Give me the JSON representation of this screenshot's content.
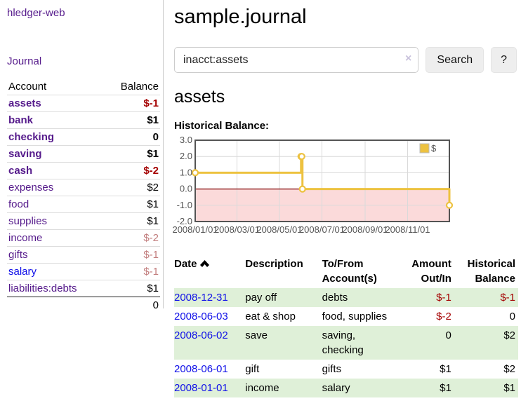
{
  "sidebar": {
    "app_title": "hledger-web",
    "journal_link": "Journal",
    "accounts_table": {
      "account_header": "Account",
      "balance_header": "Balance",
      "rows": [
        {
          "name": "assets",
          "balance": "$-1",
          "indent": 1,
          "bold": true,
          "link_color": "purple",
          "balance_color": "neg"
        },
        {
          "name": "bank",
          "balance": "$1",
          "indent": 2,
          "bold": true,
          "link_color": "purple",
          "balance_color": ""
        },
        {
          "name": "checking",
          "balance": "0",
          "indent": 3,
          "bold": true,
          "link_color": "purple",
          "balance_color": ""
        },
        {
          "name": "saving",
          "balance": "$1",
          "indent": 3,
          "bold": true,
          "link_color": "purple",
          "balance_color": ""
        },
        {
          "name": "cash",
          "balance": "$-2",
          "indent": 2,
          "bold": true,
          "link_color": "purple",
          "balance_color": "neg"
        },
        {
          "name": "expenses",
          "balance": "$2",
          "indent": 1,
          "bold": false,
          "link_color": "purple",
          "balance_color": ""
        },
        {
          "name": "food",
          "balance": "$1",
          "indent": 2,
          "bold": false,
          "link_color": "purple",
          "balance_color": ""
        },
        {
          "name": "supplies",
          "balance": "$1",
          "indent": 2,
          "bold": false,
          "link_color": "purple",
          "balance_color": ""
        },
        {
          "name": "income",
          "balance": "$-2",
          "indent": 1,
          "bold": false,
          "link_color": "purple",
          "balance_color": "soft"
        },
        {
          "name": "gifts",
          "balance": "$-1",
          "indent": 2,
          "bold": false,
          "link_color": "purple",
          "balance_color": "soft"
        },
        {
          "name": "salary",
          "balance": "$-1",
          "indent": 2,
          "bold": false,
          "link_color": "blue",
          "balance_color": "soft"
        },
        {
          "name": "liabilities:debts",
          "balance": "$1",
          "indent": 1,
          "bold": false,
          "link_color": "purple",
          "balance_color": ""
        }
      ],
      "total": "0"
    }
  },
  "main": {
    "title": "sample.journal",
    "search": {
      "value": "inacct:assets",
      "clear_icon": "×",
      "button_label": "Search",
      "help_label": "?"
    },
    "account_heading": "assets",
    "chart_title": "Historical Balance:"
  },
  "chart_data": {
    "type": "line",
    "style": "step-after",
    "title": "Historical Balance",
    "legend": {
      "label": "$",
      "position": "top-right"
    },
    "x_range": [
      "2008-01-01",
      "2008-12-31"
    ],
    "ylim": [
      -2.0,
      3.0
    ],
    "y_ticks": [
      3.0,
      2.0,
      1.0,
      0.0,
      -1.0,
      -2.0
    ],
    "x_ticks": [
      {
        "label": "2008/01/01",
        "date": "2008-01-01"
      },
      {
        "label": "2008/03/01",
        "date": "2008-03-01"
      },
      {
        "label": "2008/05/01",
        "date": "2008-05-01"
      },
      {
        "label": "2008/07/01",
        "date": "2008-07-01"
      },
      {
        "label": "2008/09/01",
        "date": "2008-09-01"
      },
      {
        "label": "2008/11/01",
        "date": "2008-11-01"
      }
    ],
    "series": [
      {
        "name": "$",
        "color": "#edc240",
        "points": [
          {
            "date": "2008-01-01",
            "value": 1
          },
          {
            "date": "2008-06-01",
            "value": 2
          },
          {
            "date": "2008-06-02",
            "value": 2
          },
          {
            "date": "2008-06-03",
            "value": 0
          },
          {
            "date": "2008-12-31",
            "value": -1
          }
        ]
      }
    ],
    "negative_region_fill": "#fbdada",
    "zero_line_color": "#800000",
    "grid_color": "#d9d9d9",
    "border_color": "#545454",
    "grid": true
  },
  "register_table": {
    "headers": {
      "date": "Date",
      "description": "Description",
      "accounts": "To/From Account(s)",
      "amount": "Amount Out/In",
      "balance": "Historical Balance"
    },
    "rows": [
      {
        "date": "2008-12-31",
        "description": "pay off",
        "accounts": "debts",
        "amount": "$-1",
        "balance": "$-1",
        "amount_neg": true,
        "balance_neg": true,
        "shade": true
      },
      {
        "date": "2008-06-03",
        "description": "eat & shop",
        "accounts": "food, supplies",
        "amount": "$-2",
        "balance": "0",
        "amount_neg": true,
        "balance_neg": false,
        "shade": false
      },
      {
        "date": "2008-06-02",
        "description": "save",
        "accounts": "saving, checking",
        "amount": "0",
        "balance": "$2",
        "amount_neg": false,
        "balance_neg": false,
        "shade": true
      },
      {
        "date": "2008-06-01",
        "description": "gift",
        "accounts": "gifts",
        "amount": "$1",
        "balance": "$2",
        "amount_neg": false,
        "balance_neg": false,
        "shade": false
      },
      {
        "date": "2008-01-01",
        "description": "income",
        "accounts": "salary",
        "amount": "$1",
        "balance": "$1",
        "amount_neg": false,
        "balance_neg": false,
        "shade": true
      }
    ]
  },
  "colors": {
    "link_purple": "#551a8b",
    "link_blue": "#0f0fe8",
    "negative_strong": "#a40000",
    "negative_soft": "#c27e7e",
    "row_shade_green": "#dff0d8",
    "chart_line": "#edc240"
  }
}
